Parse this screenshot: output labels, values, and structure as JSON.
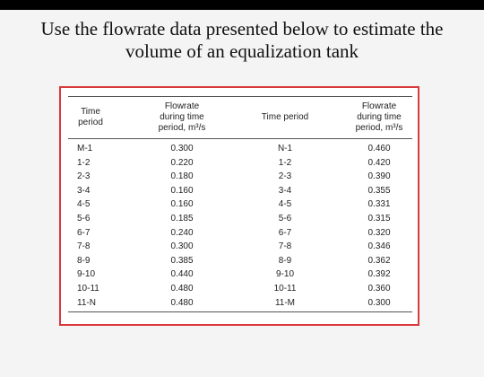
{
  "question": {
    "line1": "Use the flowrate data presented below to estimate the",
    "line2": "volume of an equalization tank"
  },
  "table": {
    "headers": [
      "Time\nperiod",
      "Flowrate\nduring time\nperiod, m³/s",
      "Time period",
      "Flowrate\nduring time\nperiod, m³/s"
    ],
    "rows": [
      [
        "M-1",
        "0.300",
        "N-1",
        "0.460"
      ],
      [
        "1-2",
        "0.220",
        "1-2",
        "0.420"
      ],
      [
        "2-3",
        "0.180",
        "2-3",
        "0.390"
      ],
      [
        "3-4",
        "0.160",
        "3-4",
        "0.355"
      ],
      [
        "4-5",
        "0.160",
        "4-5",
        "0.331"
      ],
      [
        "5-6",
        "0.185",
        "5-6",
        "0.315"
      ],
      [
        "6-7",
        "0.240",
        "6-7",
        "0.320"
      ],
      [
        "7-8",
        "0.300",
        "7-8",
        "0.346"
      ],
      [
        "8-9",
        "0.385",
        "8-9",
        "0.362"
      ],
      [
        "9-10",
        "0.440",
        "9-10",
        "0.392"
      ],
      [
        "10-11",
        "0.480",
        "10-11",
        "0.360"
      ],
      [
        "11-N",
        "0.480",
        "11-M",
        "0.300"
      ]
    ]
  },
  "colors": {
    "frame_border": "#d9393b",
    "top_bar": "#000000"
  }
}
